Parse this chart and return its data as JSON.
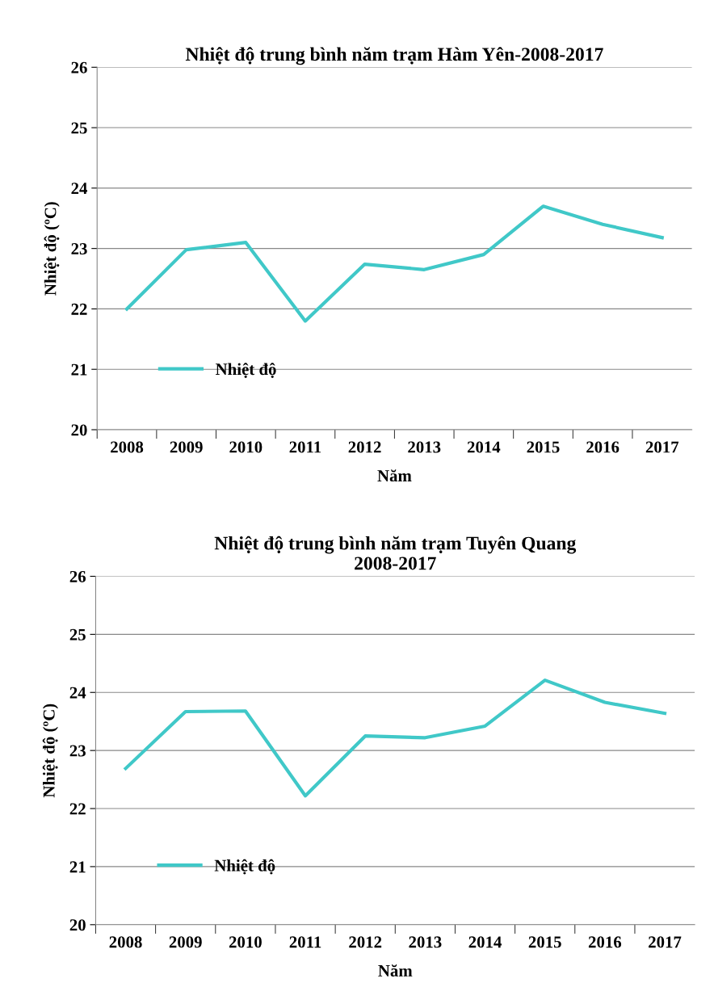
{
  "chart_data": [
    {
      "type": "line",
      "title": "Nhiệt độ trung bình năm trạm Hàm Yên-2008-2017",
      "xlabel": "Năm",
      "ylabel": "Nhiệt độ (ºC)",
      "categories": [
        "2008",
        "2009",
        "2010",
        "2011",
        "2012",
        "2013",
        "2014",
        "2015",
        "2016",
        "2017"
      ],
      "series": [
        {
          "name": "Nhiệt độ",
          "color": "#40c8c8",
          "values": [
            22.0,
            22.98,
            23.1,
            21.8,
            22.74,
            22.65,
            22.9,
            23.7,
            23.4,
            23.18
          ]
        }
      ],
      "ylim": [
        20,
        26
      ],
      "yticks": [
        20,
        21,
        22,
        23,
        24,
        25,
        26
      ],
      "grid": "y",
      "legend": "bottom left",
      "marker": "none",
      "line_style": "solid"
    },
    {
      "type": "line",
      "title": "Nhiệt độ trung bình năm trạm Tuyên Quang\n2008-2017",
      "xlabel": "Năm",
      "ylabel": "Nhiệt độ (ºC)",
      "categories": [
        "2008",
        "2009",
        "2010",
        "2011",
        "2012",
        "2013",
        "2014",
        "2015",
        "2016",
        "2017"
      ],
      "series": [
        {
          "name": "Nhiệt độ",
          "color": "#40c8c8",
          "values": [
            22.69,
            23.67,
            23.68,
            22.22,
            23.25,
            23.22,
            23.42,
            24.21,
            23.83,
            23.64
          ]
        }
      ],
      "ylim": [
        20,
        26
      ],
      "yticks": [
        20,
        21,
        22,
        23,
        24,
        25,
        26
      ],
      "grid": "y",
      "legend": "bottom left",
      "marker": "none",
      "line_style": "solid"
    }
  ]
}
